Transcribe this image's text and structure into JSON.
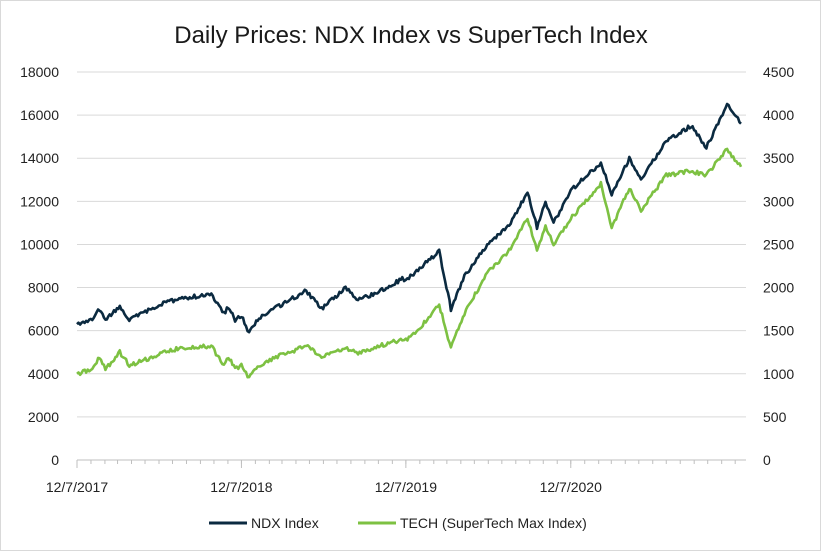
{
  "chart_data": {
    "type": "line",
    "title": "Daily Prices: NDX Index vs SuperTech Index",
    "x_tick_labels": [
      "12/7/2017",
      "12/7/2018",
      "12/7/2019",
      "12/7/2020"
    ],
    "x_range": [
      "2017-12-07",
      "2021-12-31"
    ],
    "y_left": {
      "ticks": [
        0,
        2000,
        4000,
        6000,
        8000,
        10000,
        12000,
        14000,
        16000,
        18000
      ],
      "range": [
        0,
        18000
      ]
    },
    "y_right": {
      "ticks": [
        0,
        500,
        1000,
        1500,
        2000,
        2500,
        3000,
        3500,
        4000,
        4500
      ],
      "range": [
        0,
        4500
      ]
    },
    "grid": true,
    "legend_position": "bottom",
    "series": [
      {
        "name": "NDX Index",
        "axis": "left",
        "color": "#0b2a40",
        "points": [
          [
            "2017-12-07",
            6300
          ],
          [
            "2018-01-10",
            6500
          ],
          [
            "2018-01-26",
            7000
          ],
          [
            "2018-02-08",
            6500
          ],
          [
            "2018-03-12",
            7100
          ],
          [
            "2018-04-02",
            6500
          ],
          [
            "2018-05-01",
            6800
          ],
          [
            "2018-06-20",
            7300
          ],
          [
            "2018-07-25",
            7500
          ],
          [
            "2018-08-31",
            7600
          ],
          [
            "2018-10-01",
            7650
          ],
          [
            "2018-10-29",
            6800
          ],
          [
            "2018-11-08",
            7100
          ],
          [
            "2018-11-23",
            6500
          ],
          [
            "2018-12-07",
            6700
          ],
          [
            "2018-12-24",
            5900
          ],
          [
            "2019-01-15",
            6600
          ],
          [
            "2019-02-25",
            7100
          ],
          [
            "2019-04-30",
            7850
          ],
          [
            "2019-06-03",
            7000
          ],
          [
            "2019-07-26",
            8000
          ],
          [
            "2019-08-23",
            7400
          ],
          [
            "2019-10-15",
            7900
          ],
          [
            "2019-11-29",
            8400
          ],
          [
            "2019-12-07",
            8350
          ],
          [
            "2020-01-10",
            8950
          ],
          [
            "2020-02-19",
            9700
          ],
          [
            "2020-03-16",
            7000
          ],
          [
            "2020-04-15",
            8500
          ],
          [
            "2020-06-08",
            10100
          ],
          [
            "2020-07-20",
            10800
          ],
          [
            "2020-09-02",
            12400
          ],
          [
            "2020-09-23",
            10800
          ],
          [
            "2020-10-12",
            12000
          ],
          [
            "2020-10-30",
            11000
          ],
          [
            "2020-12-07",
            12500
          ],
          [
            "2021-02-12",
            13800
          ],
          [
            "2021-03-08",
            12300
          ],
          [
            "2021-04-16",
            14000
          ],
          [
            "2021-05-12",
            13000
          ],
          [
            "2021-07-07",
            14800
          ],
          [
            "2021-08-31",
            15500
          ],
          [
            "2021-10-04",
            14500
          ],
          [
            "2021-11-19",
            16500
          ],
          [
            "2021-12-20",
            15600
          ]
        ]
      },
      {
        "name": "TECH (SuperTech Max Index)",
        "axis": "right",
        "color": "#7dc142",
        "points": [
          [
            "2017-12-07",
            1000
          ],
          [
            "2018-01-10",
            1050
          ],
          [
            "2018-01-26",
            1200
          ],
          [
            "2018-02-08",
            1050
          ],
          [
            "2018-03-12",
            1250
          ],
          [
            "2018-04-02",
            1100
          ],
          [
            "2018-05-01",
            1150
          ],
          [
            "2018-06-20",
            1250
          ],
          [
            "2018-07-25",
            1300
          ],
          [
            "2018-08-31",
            1310
          ],
          [
            "2018-10-01",
            1320
          ],
          [
            "2018-10-29",
            1100
          ],
          [
            "2018-11-08",
            1200
          ],
          [
            "2018-11-23",
            1050
          ],
          [
            "2018-12-07",
            1100
          ],
          [
            "2018-12-24",
            950
          ],
          [
            "2019-01-15",
            1100
          ],
          [
            "2019-02-25",
            1200
          ],
          [
            "2019-04-30",
            1320
          ],
          [
            "2019-06-03",
            1200
          ],
          [
            "2019-07-26",
            1300
          ],
          [
            "2019-08-23",
            1230
          ],
          [
            "2019-10-15",
            1330
          ],
          [
            "2019-11-29",
            1400
          ],
          [
            "2019-12-07",
            1390
          ],
          [
            "2020-01-10",
            1550
          ],
          [
            "2020-02-19",
            1800
          ],
          [
            "2020-03-16",
            1300
          ],
          [
            "2020-04-15",
            1700
          ],
          [
            "2020-06-08",
            2200
          ],
          [
            "2020-07-20",
            2400
          ],
          [
            "2020-09-02",
            2800
          ],
          [
            "2020-09-23",
            2450
          ],
          [
            "2020-10-12",
            2700
          ],
          [
            "2020-10-30",
            2500
          ],
          [
            "2020-12-07",
            2800
          ],
          [
            "2021-02-12",
            3200
          ],
          [
            "2021-03-08",
            2700
          ],
          [
            "2021-04-16",
            3150
          ],
          [
            "2021-05-12",
            2900
          ],
          [
            "2021-07-07",
            3300
          ],
          [
            "2021-08-31",
            3350
          ],
          [
            "2021-10-04",
            3300
          ],
          [
            "2021-11-19",
            3600
          ],
          [
            "2021-12-20",
            3400
          ]
        ]
      }
    ]
  }
}
